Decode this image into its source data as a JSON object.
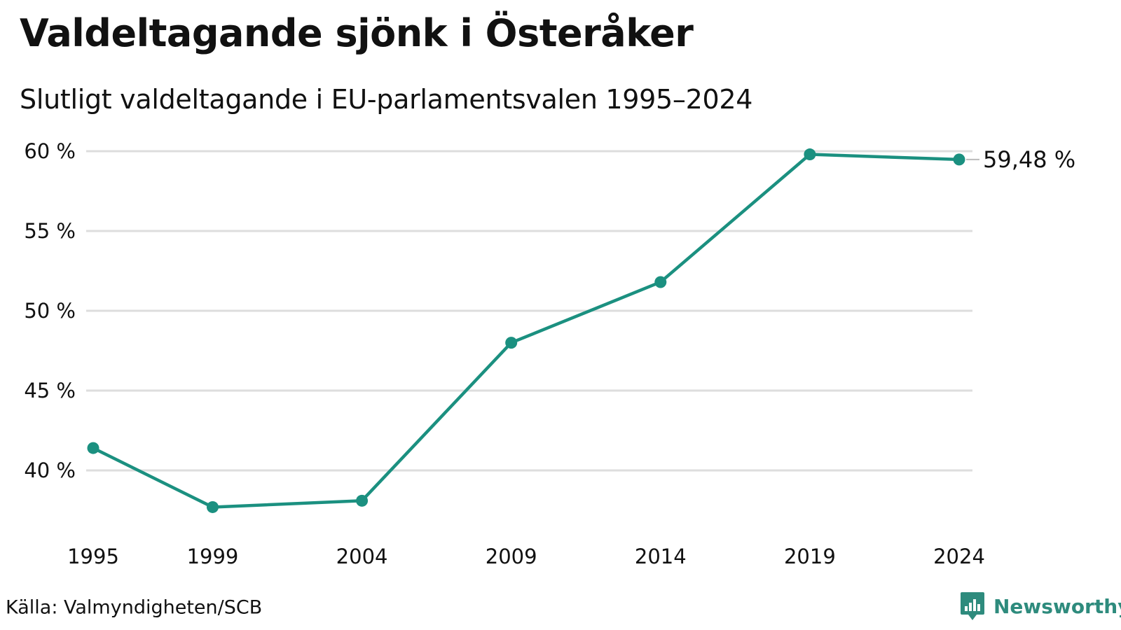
{
  "header": {
    "title": "Valdeltagande sjönk i Österåker",
    "subtitle": "Slutligt valdeltagande i EU-parlamentsvalen 1995–2024"
  },
  "footer": {
    "source": "Källa: Valmyndigheten/SCB",
    "brand": "Newsworthy"
  },
  "colors": {
    "line": "#1b9080",
    "grid": "#dddddd",
    "brand": "#2e8b7d"
  },
  "chart_data": {
    "type": "line",
    "title": "Valdeltagande sjönk i Österåker",
    "subtitle": "Slutligt valdeltagande i EU-parlamentsvalen 1995–2024",
    "xlabel": "",
    "ylabel": "",
    "x": [
      "1995",
      "1999",
      "2004",
      "2009",
      "2014",
      "2019",
      "2024"
    ],
    "series": [
      {
        "values": [
          41.4,
          37.7,
          38.1,
          48.0,
          51.8,
          59.8,
          59.48
        ]
      }
    ],
    "ylim": [
      36,
      60
    ],
    "yticks": [
      40,
      45,
      50,
      55,
      60
    ],
    "ytick_labels": [
      "40 %",
      "45 %",
      "50 %",
      "55 %",
      "60 %"
    ],
    "end_label": "59,48 %",
    "grid": true,
    "legend": "none"
  }
}
